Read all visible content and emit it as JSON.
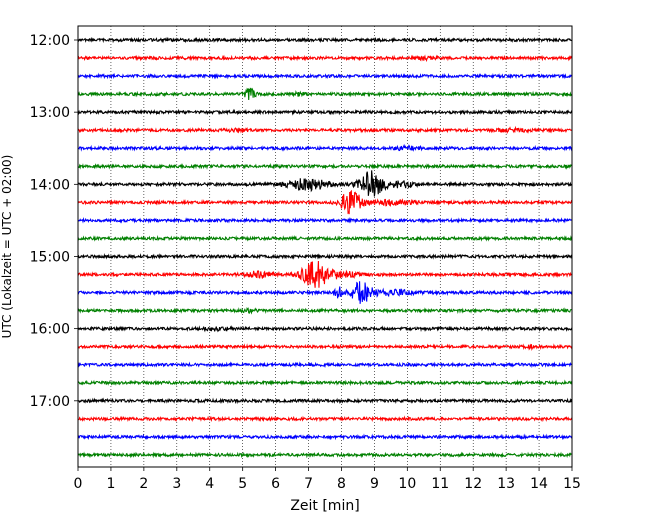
{
  "chart_data": {
    "type": "line",
    "title": "",
    "xlabel": "Zeit  [min]",
    "ylabel": "UTC (Lokalzeit = UTC + 02:00)",
    "xlim": [
      0,
      15
    ],
    "x_ticks": [
      "0",
      "1",
      "2",
      "3",
      "4",
      "5",
      "6",
      "7",
      "8",
      "9",
      "10",
      "11",
      "12",
      "13",
      "14",
      "15"
    ],
    "y_tick_labels": [
      "12:00",
      "13:00",
      "14:00",
      "15:00",
      "16:00",
      "17:00"
    ],
    "grid": "vertical dotted",
    "color_cycle": [
      "#000000",
      "#ff0000",
      "#0000ff",
      "#008000"
    ],
    "series": [
      {
        "start": "12:00",
        "color": "#000000",
        "noise": 1.0,
        "bursts": []
      },
      {
        "start": "12:15",
        "color": "#ff0000",
        "noise": 1.0,
        "bursts": [
          [
            10.6,
            0.3,
            2.0
          ]
        ]
      },
      {
        "start": "12:30",
        "color": "#0000ff",
        "noise": 1.0,
        "bursts": []
      },
      {
        "start": "12:45",
        "color": "#008000",
        "noise": 1.0,
        "bursts": [
          [
            5.2,
            0.15,
            5.5
          ],
          [
            6.7,
            0.2,
            1.8
          ]
        ]
      },
      {
        "start": "13:00",
        "color": "#000000",
        "noise": 1.0,
        "bursts": []
      },
      {
        "start": "13:15",
        "color": "#ff0000",
        "noise": 1.0,
        "bursts": [
          [
            4.8,
            0.4,
            1.8
          ],
          [
            13.2,
            0.4,
            1.8
          ]
        ]
      },
      {
        "start": "13:30",
        "color": "#0000ff",
        "noise": 1.0,
        "bursts": [
          [
            10.0,
            0.4,
            2.0
          ]
        ]
      },
      {
        "start": "13:45",
        "color": "#008000",
        "noise": 1.0,
        "bursts": []
      },
      {
        "start": "14:00",
        "color": "#000000",
        "noise": 1.0,
        "bursts": [
          [
            7.0,
            0.6,
            5.0
          ],
          [
            8.9,
            0.35,
            10.0
          ],
          [
            9.8,
            0.4,
            3.0
          ]
        ]
      },
      {
        "start": "14:15",
        "color": "#ff0000",
        "noise": 1.0,
        "bursts": [
          [
            8.3,
            0.3,
            10.0
          ],
          [
            9.5,
            0.7,
            2.5
          ]
        ]
      },
      {
        "start": "14:30",
        "color": "#0000ff",
        "noise": 1.0,
        "bursts": []
      },
      {
        "start": "14:45",
        "color": "#008000",
        "noise": 1.0,
        "bursts": []
      },
      {
        "start": "15:00",
        "color": "#000000",
        "noise": 1.0,
        "bursts": []
      },
      {
        "start": "15:15",
        "color": "#ff0000",
        "noise": 1.0,
        "bursts": [
          [
            5.5,
            0.4,
            3.0
          ],
          [
            7.2,
            0.4,
            10.0
          ],
          [
            8.0,
            0.5,
            3.0
          ]
        ]
      },
      {
        "start": "15:30",
        "color": "#0000ff",
        "noise": 1.0,
        "bursts": [
          [
            7.9,
            0.12,
            5.0
          ],
          [
            8.6,
            0.3,
            8.0
          ],
          [
            9.5,
            0.8,
            2.5
          ]
        ]
      },
      {
        "start": "15:45",
        "color": "#008000",
        "noise": 1.0,
        "bursts": [
          [
            5.2,
            0.2,
            1.8
          ]
        ]
      },
      {
        "start": "16:00",
        "color": "#000000",
        "noise": 1.0,
        "bursts": [
          [
            4.2,
            0.4,
            2.0
          ]
        ]
      },
      {
        "start": "16:15",
        "color": "#ff0000",
        "noise": 1.0,
        "bursts": [
          [
            13.7,
            0.1,
            2.5
          ]
        ]
      },
      {
        "start": "16:30",
        "color": "#0000ff",
        "noise": 1.0,
        "bursts": []
      },
      {
        "start": "16:45",
        "color": "#008000",
        "noise": 1.0,
        "bursts": []
      },
      {
        "start": "17:00",
        "color": "#000000",
        "noise": 1.0,
        "bursts": []
      },
      {
        "start": "17:15",
        "color": "#ff0000",
        "noise": 1.0,
        "bursts": []
      },
      {
        "start": "17:30",
        "color": "#0000ff",
        "noise": 1.0,
        "bursts": []
      },
      {
        "start": "17:45",
        "color": "#008000",
        "noise": 1.0,
        "bursts": []
      }
    ]
  }
}
